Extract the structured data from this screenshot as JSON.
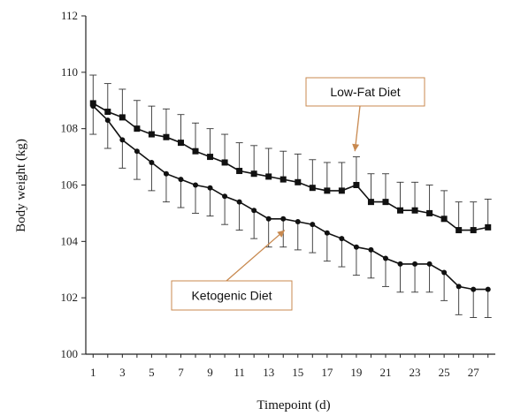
{
  "chart_data": {
    "type": "line",
    "title": "",
    "xlabel": "Timepoint (d)",
    "ylabel": "Body weight (kg)",
    "xlim": [
      0.5,
      28.5
    ],
    "ylim": [
      100,
      112
    ],
    "x_ticks": [
      1,
      3,
      5,
      7,
      9,
      11,
      13,
      15,
      17,
      19,
      21,
      23,
      25,
      27
    ],
    "y_ticks": [
      100,
      102,
      104,
      106,
      108,
      110,
      112
    ],
    "grid": false,
    "x": [
      1,
      2,
      3,
      4,
      5,
      6,
      7,
      8,
      9,
      10,
      11,
      12,
      13,
      14,
      15,
      16,
      17,
      18,
      19,
      20,
      21,
      22,
      23,
      24,
      25,
      26,
      27,
      28
    ],
    "series": [
      {
        "name": "Low-Fat Diet",
        "marker": "square",
        "color": "#111111",
        "values": [
          108.9,
          108.6,
          108.4,
          108.0,
          107.8,
          107.7,
          107.5,
          107.2,
          107.0,
          106.8,
          106.5,
          106.4,
          106.3,
          106.2,
          106.1,
          105.9,
          105.8,
          105.8,
          106.0,
          105.4,
          105.4,
          105.1,
          105.1,
          105.0,
          104.8,
          104.4,
          104.4,
          104.5
        ],
        "error_upper": [
          1.0,
          1.0,
          1.0,
          1.0,
          1.0,
          1.0,
          1.0,
          1.0,
          1.0,
          1.0,
          1.0,
          1.0,
          1.0,
          1.0,
          1.0,
          1.0,
          1.0,
          1.0,
          1.0,
          1.0,
          1.0,
          1.0,
          1.0,
          1.0,
          1.0,
          1.0,
          1.0,
          1.0
        ]
      },
      {
        "name": "Ketogenic Diet",
        "marker": "circle",
        "color": "#111111",
        "values": [
          108.8,
          108.3,
          107.6,
          107.2,
          106.8,
          106.4,
          106.2,
          106.0,
          105.9,
          105.6,
          105.4,
          105.1,
          104.8,
          104.8,
          104.7,
          104.6,
          104.3,
          104.1,
          103.8,
          103.7,
          103.4,
          103.2,
          103.2,
          103.2,
          102.9,
          102.4,
          102.3,
          102.3
        ],
        "error_lower": [
          1.0,
          1.0,
          1.0,
          1.0,
          1.0,
          1.0,
          1.0,
          1.0,
          1.0,
          1.0,
          1.0,
          1.0,
          1.0,
          1.0,
          1.0,
          1.0,
          1.0,
          1.0,
          1.0,
          1.0,
          1.0,
          1.0,
          1.0,
          1.0,
          1.0,
          1.0,
          1.0,
          1.0
        ]
      }
    ],
    "annotations": [
      {
        "text": "Low-Fat Diet",
        "series": "Low-Fat Diet",
        "points_to_x": 18.9,
        "points_to_y": 107.2,
        "color": "#c8894f"
      },
      {
        "text": "Ketogenic Diet",
        "series": "Ketogenic Diet",
        "points_to_x": 14.1,
        "points_to_y": 104.4,
        "color": "#c8894f"
      }
    ]
  }
}
